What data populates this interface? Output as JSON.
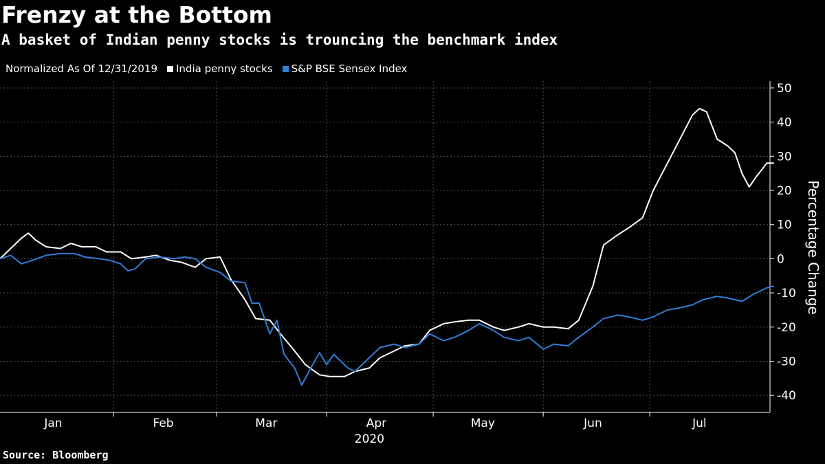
{
  "header": {
    "title": "Frenzy at the Bottom",
    "subtitle": "A basket of Indian penny stocks is trouncing the benchmark index"
  },
  "legend": {
    "note": "Normalized As Of 12/31/2019",
    "items": [
      {
        "label": "India penny stocks",
        "color": "#ffffff"
      },
      {
        "label": "S&P BSE Sensex Index",
        "color": "#2f7ed8"
      }
    ]
  },
  "footer": {
    "source": "Source: Bloomberg"
  },
  "chart_data": {
    "type": "line",
    "ylabel": "Percentage Change",
    "ylim": [
      -45,
      52
    ],
    "yticks": [
      50,
      40,
      30,
      20,
      10,
      0,
      -10,
      -20,
      -30,
      -40
    ],
    "xticks": [
      {
        "label": "Jan",
        "date": "2020-01-15"
      },
      {
        "label": "Feb",
        "date": "2020-02-15"
      },
      {
        "label": "Mar",
        "date": "2020-03-15"
      },
      {
        "label": "Apr",
        "date": "2020-04-15"
      },
      {
        "label": "May",
        "date": "2020-05-15"
      },
      {
        "label": "Jun",
        "date": "2020-06-15"
      },
      {
        "label": "Jul",
        "date": "2020-07-15"
      }
    ],
    "month_boundaries": [
      "2020-02-01",
      "2020-03-01",
      "2020-04-01",
      "2020-05-01",
      "2020-06-01",
      "2020-07-01"
    ],
    "year_label": "2020",
    "xlim": [
      "2019-12-31",
      "2020-07-31"
    ],
    "grid": true,
    "legend_position": "top-left",
    "series": [
      {
        "name": "India penny stocks",
        "color": "#ffffff",
        "points": [
          [
            "2019-12-31",
            0
          ],
          [
            "2020-01-03",
            3
          ],
          [
            "2020-01-06",
            6
          ],
          [
            "2020-01-08",
            7.5
          ],
          [
            "2020-01-10",
            5.5
          ],
          [
            "2020-01-13",
            3.5
          ],
          [
            "2020-01-17",
            3
          ],
          [
            "2020-01-20",
            4.5
          ],
          [
            "2020-01-23",
            3.5
          ],
          [
            "2020-01-27",
            3.5
          ],
          [
            "2020-01-30",
            2
          ],
          [
            "2020-02-03",
            2
          ],
          [
            "2020-02-06",
            0
          ],
          [
            "2020-02-10",
            0.5
          ],
          [
            "2020-02-13",
            1
          ],
          [
            "2020-02-17",
            -0.5
          ],
          [
            "2020-02-20",
            -1
          ],
          [
            "2020-02-24",
            -2.5
          ],
          [
            "2020-02-27",
            0
          ],
          [
            "2020-03-02",
            0.5
          ],
          [
            "2020-03-05",
            -6
          ],
          [
            "2020-03-09",
            -12
          ],
          [
            "2020-03-12",
            -17.5
          ],
          [
            "2020-03-16",
            -18
          ],
          [
            "2020-03-19",
            -22
          ],
          [
            "2020-03-23",
            -27
          ],
          [
            "2020-03-26",
            -31
          ],
          [
            "2020-03-30",
            -34
          ],
          [
            "2020-04-02",
            -34.5
          ],
          [
            "2020-04-06",
            -34.5
          ],
          [
            "2020-04-09",
            -33
          ],
          [
            "2020-04-13",
            -32
          ],
          [
            "2020-04-16",
            -29
          ],
          [
            "2020-04-20",
            -27
          ],
          [
            "2020-04-23",
            -25.5
          ],
          [
            "2020-04-27",
            -25
          ],
          [
            "2020-04-30",
            -21
          ],
          [
            "2020-05-04",
            -19
          ],
          [
            "2020-05-07",
            -18.5
          ],
          [
            "2020-05-11",
            -18
          ],
          [
            "2020-05-14",
            -18
          ],
          [
            "2020-05-18",
            -20
          ],
          [
            "2020-05-21",
            -21
          ],
          [
            "2020-05-25",
            -20
          ],
          [
            "2020-05-28",
            -19
          ],
          [
            "2020-06-01",
            -20
          ],
          [
            "2020-06-04",
            -20
          ],
          [
            "2020-06-08",
            -20.5
          ],
          [
            "2020-06-11",
            -18
          ],
          [
            "2020-06-15",
            -8
          ],
          [
            "2020-06-18",
            4
          ],
          [
            "2020-06-22",
            7
          ],
          [
            "2020-06-25",
            9
          ],
          [
            "2020-06-29",
            12
          ],
          [
            "2020-07-02",
            20
          ],
          [
            "2020-07-06",
            28
          ],
          [
            "2020-07-09",
            34
          ],
          [
            "2020-07-13",
            42
          ],
          [
            "2020-07-15",
            44
          ],
          [
            "2020-07-17",
            43
          ],
          [
            "2020-07-20",
            35
          ],
          [
            "2020-07-23",
            33
          ],
          [
            "2020-07-25",
            31
          ],
          [
            "2020-07-27",
            25
          ],
          [
            "2020-07-29",
            21
          ],
          [
            "2020-07-31",
            24
          ],
          [
            "2020-08-03",
            28
          ],
          [
            "2020-08-05",
            28
          ]
        ]
      },
      {
        "name": "S&P BSE Sensex Index",
        "color": "#2f7ed8",
        "points": [
          [
            "2019-12-31",
            0
          ],
          [
            "2020-01-03",
            1
          ],
          [
            "2020-01-06",
            -1.5
          ],
          [
            "2020-01-09",
            -0.5
          ],
          [
            "2020-01-13",
            1
          ],
          [
            "2020-01-17",
            1.5
          ],
          [
            "2020-01-21",
            1.5
          ],
          [
            "2020-01-24",
            0.5
          ],
          [
            "2020-01-28",
            0
          ],
          [
            "2020-01-31",
            -0.5
          ],
          [
            "2020-02-03",
            -1.5
          ],
          [
            "2020-02-05",
            -3.5
          ],
          [
            "2020-02-07",
            -3
          ],
          [
            "2020-02-10",
            0
          ],
          [
            "2020-02-14",
            0.5
          ],
          [
            "2020-02-18",
            0
          ],
          [
            "2020-02-21",
            0.5
          ],
          [
            "2020-02-24",
            0
          ],
          [
            "2020-02-27",
            -2.5
          ],
          [
            "2020-03-02",
            -4
          ],
          [
            "2020-03-05",
            -6.5
          ],
          [
            "2020-03-09",
            -7
          ],
          [
            "2020-03-11",
            -13
          ],
          [
            "2020-03-13",
            -13
          ],
          [
            "2020-03-16",
            -22
          ],
          [
            "2020-03-18",
            -18
          ],
          [
            "2020-03-20",
            -28
          ],
          [
            "2020-03-23",
            -32
          ],
          [
            "2020-03-25",
            -37
          ],
          [
            "2020-03-27",
            -33
          ],
          [
            "2020-03-30",
            -27.5
          ],
          [
            "2020-04-01",
            -31
          ],
          [
            "2020-04-03",
            -28
          ],
          [
            "2020-04-07",
            -32
          ],
          [
            "2020-04-09",
            -33
          ],
          [
            "2020-04-13",
            -29
          ],
          [
            "2020-04-16",
            -26
          ],
          [
            "2020-04-20",
            -25
          ],
          [
            "2020-04-23",
            -26
          ],
          [
            "2020-04-27",
            -25
          ],
          [
            "2020-04-30",
            -22
          ],
          [
            "2020-05-04",
            -24
          ],
          [
            "2020-05-07",
            -23
          ],
          [
            "2020-05-11",
            -21
          ],
          [
            "2020-05-14",
            -19
          ],
          [
            "2020-05-18",
            -21
          ],
          [
            "2020-05-21",
            -23
          ],
          [
            "2020-05-25",
            -24
          ],
          [
            "2020-05-28",
            -23
          ],
          [
            "2020-06-01",
            -26.5
          ],
          [
            "2020-06-04",
            -25
          ],
          [
            "2020-06-08",
            -25.5
          ],
          [
            "2020-06-11",
            -23
          ],
          [
            "2020-06-15",
            -20
          ],
          [
            "2020-06-18",
            -17.5
          ],
          [
            "2020-06-22",
            -16.5
          ],
          [
            "2020-06-25",
            -17
          ],
          [
            "2020-06-29",
            -18
          ],
          [
            "2020-07-02",
            -17
          ],
          [
            "2020-07-06",
            -15
          ],
          [
            "2020-07-09",
            -14.5
          ],
          [
            "2020-07-13",
            -13.5
          ],
          [
            "2020-07-16",
            -12
          ],
          [
            "2020-07-20",
            -11
          ],
          [
            "2020-07-23",
            -11.5
          ],
          [
            "2020-07-27",
            -12.5
          ],
          [
            "2020-07-30",
            -10.5
          ],
          [
            "2020-08-03",
            -8.5
          ],
          [
            "2020-08-05",
            -8
          ]
        ]
      }
    ]
  }
}
